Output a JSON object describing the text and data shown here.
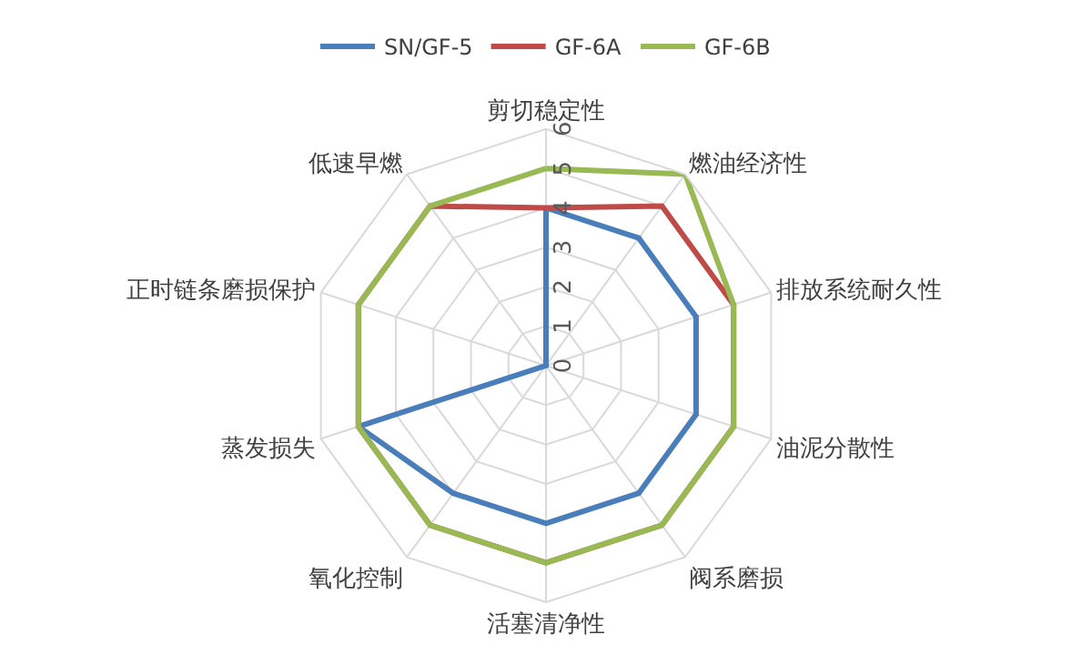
{
  "chart_data": {
    "type": "radar",
    "categories": [
      "剪切稳定性",
      "燃油经济性",
      "排放系统耐久性",
      "油泥分散性",
      "阀系磨损",
      "活塞清净性",
      "氧化控制",
      "蒸发损失",
      "正时链条磨损保护",
      "低速早燃"
    ],
    "series": [
      {
        "name": "SN/GF-5",
        "color": "#4a7ebb",
        "values": [
          4,
          4,
          4,
          4,
          4,
          4,
          4,
          5,
          0,
          0
        ]
      },
      {
        "name": "GF-6A",
        "color": "#be4b48",
        "values": [
          4,
          5,
          5,
          5,
          5,
          5,
          5,
          5,
          5,
          5
        ]
      },
      {
        "name": "GF-6B",
        "color": "#98b954",
        "values": [
          5,
          6,
          5,
          5,
          5,
          5,
          5,
          5,
          5,
          5
        ]
      }
    ],
    "ylim": [
      0,
      6
    ],
    "yticks": [
      0,
      1,
      2,
      3,
      4,
      5,
      6
    ],
    "grid": true,
    "legend": "top",
    "marker": "none",
    "line_style": "solid"
  }
}
